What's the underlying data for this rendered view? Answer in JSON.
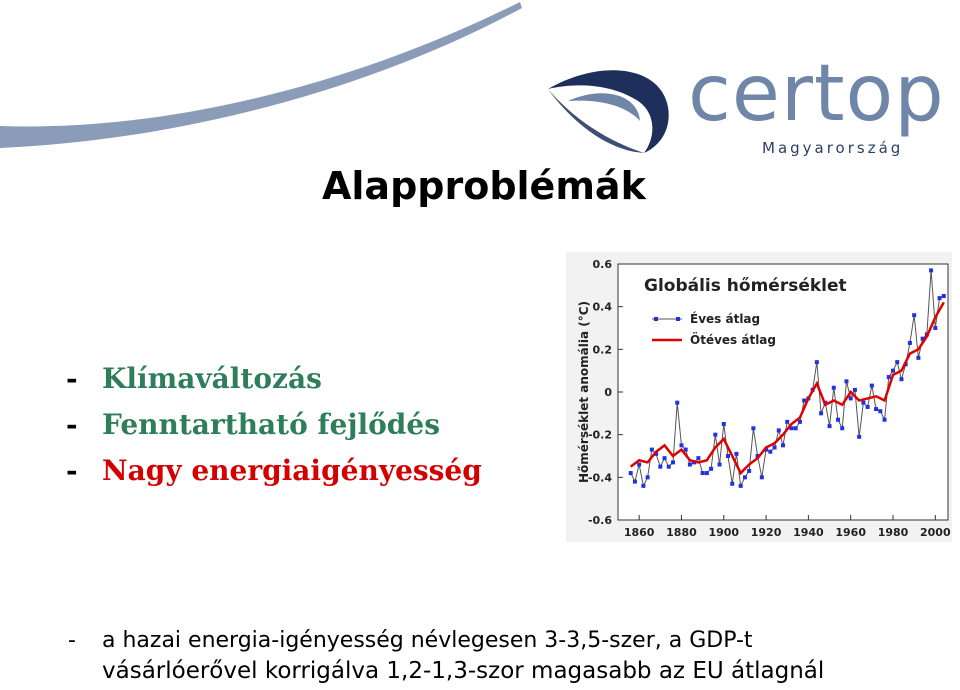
{
  "colors": {
    "bullet_green": "#2e7d5b",
    "bullet_red": "#d40000",
    "logo_blue": "#6f86a8",
    "logo_dark": "#2b3f66",
    "series_annual": "#2233dd",
    "series_fiveyear": "#e00000"
  },
  "logo": {
    "word": "certop",
    "sub": "Magyarország"
  },
  "title": "Alapproblémák",
  "bullets": [
    {
      "dash": "-",
      "text": "Klímaváltozás",
      "color": "#2e7d5b"
    },
    {
      "dash": "-",
      "text": "Fenntartható fejlődés",
      "color": "#2e7d5b"
    },
    {
      "dash": "-",
      "text": "Nagy energiaigényesség",
      "color": "#d40000"
    }
  ],
  "bottom": {
    "dash": "-",
    "line1": "a hazai energia-igényesség névlegesen 3-3,5-szer, a GDP-t",
    "line2": "vásárlóerővel korrigálva 1,2-1,3-szor magasabb az EU átlagnál"
  },
  "chart_data": {
    "type": "line",
    "title": "Globális hőmérséklet",
    "ylabel": "Hőmérséklet anomália (°C)",
    "xlabel": "",
    "xlim": [
      1850,
      2006
    ],
    "ylim": [
      -0.6,
      0.6
    ],
    "xticks": [
      "1860",
      "1880",
      "1900",
      "1920",
      "1940",
      "1960",
      "1980",
      "2000"
    ],
    "yticks": [
      "0.6",
      "0.4",
      "0.2",
      "0",
      "-0.2",
      "-0.4",
      "-0.6"
    ],
    "legend_position": "top-left",
    "grid": false,
    "series": [
      {
        "name": "Éves átlag",
        "color": "#2233dd",
        "x": [
          1856,
          1858,
          1860,
          1862,
          1864,
          1866,
          1868,
          1870,
          1872,
          1874,
          1876,
          1878,
          1880,
          1882,
          1884,
          1886,
          1888,
          1890,
          1892,
          1894,
          1896,
          1898,
          1900,
          1902,
          1904,
          1906,
          1908,
          1910,
          1912,
          1914,
          1916,
          1918,
          1920,
          1922,
          1924,
          1926,
          1928,
          1930,
          1932,
          1934,
          1936,
          1938,
          1940,
          1942,
          1944,
          1946,
          1948,
          1950,
          1952,
          1954,
          1956,
          1958,
          1960,
          1962,
          1964,
          1966,
          1968,
          1970,
          1972,
          1974,
          1976,
          1978,
          1980,
          1982,
          1984,
          1986,
          1988,
          1990,
          1992,
          1994,
          1996,
          1998,
          2000,
          2002,
          2004
        ],
        "y": [
          -0.38,
          -0.42,
          -0.34,
          -0.44,
          -0.4,
          -0.27,
          -0.29,
          -0.35,
          -0.31,
          -0.35,
          -0.33,
          -0.05,
          -0.25,
          -0.27,
          -0.34,
          -0.33,
          -0.31,
          -0.38,
          -0.38,
          -0.36,
          -0.2,
          -0.34,
          -0.15,
          -0.3,
          -0.43,
          -0.29,
          -0.44,
          -0.4,
          -0.37,
          -0.17,
          -0.3,
          -0.4,
          -0.27,
          -0.28,
          -0.26,
          -0.18,
          -0.25,
          -0.14,
          -0.17,
          -0.17,
          -0.14,
          -0.04,
          -0.03,
          0.01,
          0.14,
          -0.1,
          -0.05,
          -0.16,
          0.02,
          -0.13,
          -0.17,
          0.05,
          -0.03,
          0.01,
          -0.21,
          -0.05,
          -0.07,
          0.03,
          -0.08,
          -0.09,
          -0.13,
          0.07,
          0.1,
          0.14,
          0.06,
          0.13,
          0.23,
          0.36,
          0.16,
          0.25,
          0.27,
          0.57,
          0.3,
          0.44,
          0.45
        ]
      },
      {
        "name": "Ötéves átlag",
        "color": "#e00000",
        "x": [
          1856,
          1860,
          1864,
          1868,
          1872,
          1876,
          1880,
          1884,
          1888,
          1892,
          1896,
          1900,
          1904,
          1908,
          1912,
          1916,
          1920,
          1924,
          1928,
          1932,
          1936,
          1940,
          1944,
          1948,
          1952,
          1956,
          1960,
          1964,
          1968,
          1972,
          1976,
          1980,
          1984,
          1988,
          1992,
          1996,
          2000,
          2004
        ],
        "y": [
          -0.35,
          -0.32,
          -0.33,
          -0.28,
          -0.25,
          -0.3,
          -0.27,
          -0.32,
          -0.33,
          -0.32,
          -0.26,
          -0.22,
          -0.3,
          -0.38,
          -0.34,
          -0.31,
          -0.26,
          -0.24,
          -0.2,
          -0.15,
          -0.12,
          -0.03,
          0.04,
          -0.06,
          -0.04,
          -0.06,
          0.0,
          -0.04,
          -0.03,
          -0.02,
          -0.04,
          0.08,
          0.1,
          0.18,
          0.2,
          0.26,
          0.35,
          0.42
        ]
      }
    ]
  }
}
